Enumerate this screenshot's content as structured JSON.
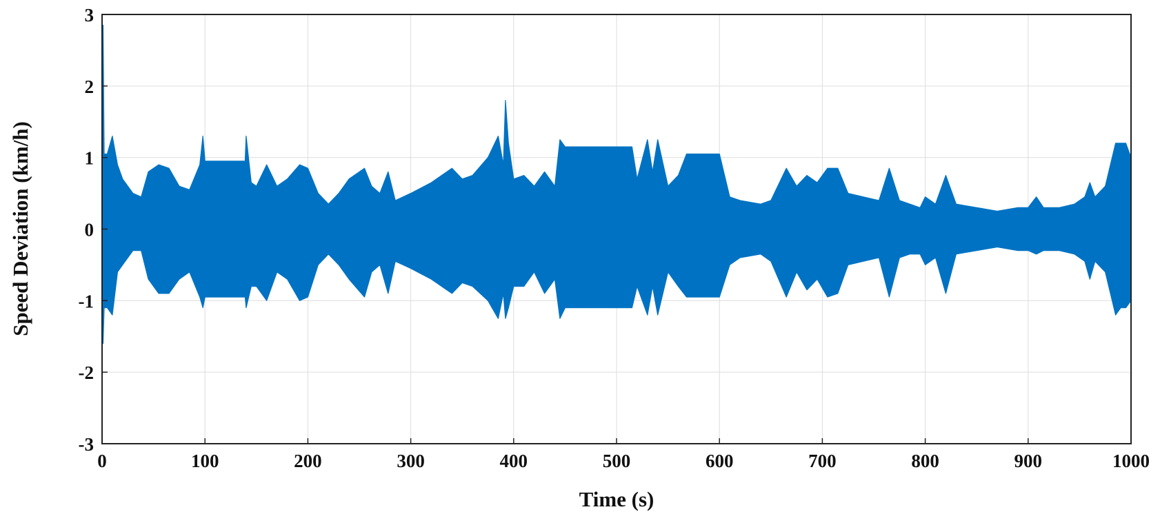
{
  "chart_data": {
    "type": "line",
    "title": "",
    "xlabel": "Time (s)",
    "ylabel": "Speed Deviation (km/h)",
    "xlim": [
      0,
      1000
    ],
    "ylim": [
      -3,
      3
    ],
    "xticks": [
      "0",
      "100",
      "200",
      "300",
      "400",
      "500",
      "600",
      "700",
      "800",
      "900",
      "1000"
    ],
    "yticks": [
      "3",
      "2",
      "1",
      "0",
      "-1",
      "-2",
      "-3"
    ],
    "grid": true,
    "legend": "none",
    "series_color": "#0072C3",
    "series": [
      {
        "x": [
          0,
          1,
          2,
          5,
          10,
          15,
          20,
          30,
          38,
          45,
          55,
          65,
          75,
          85,
          95,
          98,
          100,
          120,
          139,
          140,
          145,
          150,
          160,
          170,
          180,
          192,
          200,
          210,
          220,
          230,
          240,
          255,
          262,
          270,
          278,
          285,
          300,
          320,
          340,
          350,
          360,
          375,
          385,
          390,
          392,
          395,
          400,
          410,
          420,
          430,
          440,
          445,
          450,
          480,
          515,
          520,
          530,
          535,
          540,
          550,
          560,
          568,
          600,
          610,
          620,
          640,
          650,
          665,
          675,
          685,
          695,
          705,
          715,
          725,
          740,
          755,
          765,
          775,
          785,
          795,
          800,
          810,
          820,
          830,
          850,
          870,
          890,
          900,
          908,
          915,
          930,
          945,
          955,
          960,
          965,
          975,
          985,
          990,
          995,
          1000
        ],
        "y_upper": [
          1.05,
          2.85,
          1.05,
          1.05,
          1.3,
          0.9,
          0.7,
          0.5,
          0.45,
          0.8,
          0.9,
          0.85,
          0.6,
          0.55,
          0.9,
          1.3,
          0.95,
          0.95,
          0.95,
          1.3,
          0.65,
          0.6,
          0.9,
          0.6,
          0.7,
          0.9,
          0.85,
          0.5,
          0.35,
          0.5,
          0.7,
          0.85,
          0.6,
          0.5,
          0.8,
          0.4,
          0.5,
          0.65,
          0.85,
          0.7,
          0.75,
          1.0,
          1.3,
          0.9,
          1.8,
          1.2,
          0.7,
          0.75,
          0.6,
          0.8,
          0.6,
          1.25,
          1.15,
          1.15,
          1.15,
          0.7,
          1.25,
          0.8,
          1.25,
          0.6,
          0.75,
          1.05,
          1.05,
          0.45,
          0.4,
          0.35,
          0.4,
          0.85,
          0.6,
          0.75,
          0.65,
          0.85,
          0.85,
          0.5,
          0.45,
          0.4,
          0.85,
          0.4,
          0.35,
          0.3,
          0.45,
          0.35,
          0.75,
          0.35,
          0.3,
          0.25,
          0.3,
          0.3,
          0.45,
          0.3,
          0.3,
          0.35,
          0.45,
          0.65,
          0.45,
          0.6,
          1.2,
          1.2,
          1.2,
          1.0
        ],
        "y_lower": [
          -1.1,
          -1.6,
          -1.1,
          -1.1,
          -1.2,
          -0.6,
          -0.5,
          -0.3,
          -0.3,
          -0.7,
          -0.9,
          -0.9,
          -0.7,
          -0.6,
          -0.95,
          -1.1,
          -0.95,
          -0.95,
          -0.95,
          -1.1,
          -0.8,
          -0.8,
          -1.0,
          -0.6,
          -0.7,
          -1.0,
          -0.95,
          -0.5,
          -0.35,
          -0.5,
          -0.7,
          -0.95,
          -0.6,
          -0.5,
          -0.9,
          -0.45,
          -0.55,
          -0.7,
          -0.9,
          -0.75,
          -0.8,
          -1.0,
          -1.25,
          -0.9,
          -1.25,
          -1.1,
          -0.8,
          -0.8,
          -0.6,
          -0.9,
          -0.7,
          -1.25,
          -1.1,
          -1.1,
          -1.1,
          -0.8,
          -1.2,
          -0.8,
          -1.2,
          -0.6,
          -0.8,
          -0.95,
          -0.95,
          -0.5,
          -0.4,
          -0.35,
          -0.45,
          -0.95,
          -0.6,
          -0.85,
          -0.7,
          -0.95,
          -0.9,
          -0.5,
          -0.45,
          -0.4,
          -0.95,
          -0.4,
          -0.35,
          -0.35,
          -0.5,
          -0.4,
          -0.9,
          -0.35,
          -0.3,
          -0.25,
          -0.3,
          -0.3,
          -0.35,
          -0.3,
          -0.3,
          -0.35,
          -0.45,
          -0.7,
          -0.45,
          -0.6,
          -1.2,
          -1.1,
          -1.1,
          -1.0
        ]
      }
    ]
  }
}
